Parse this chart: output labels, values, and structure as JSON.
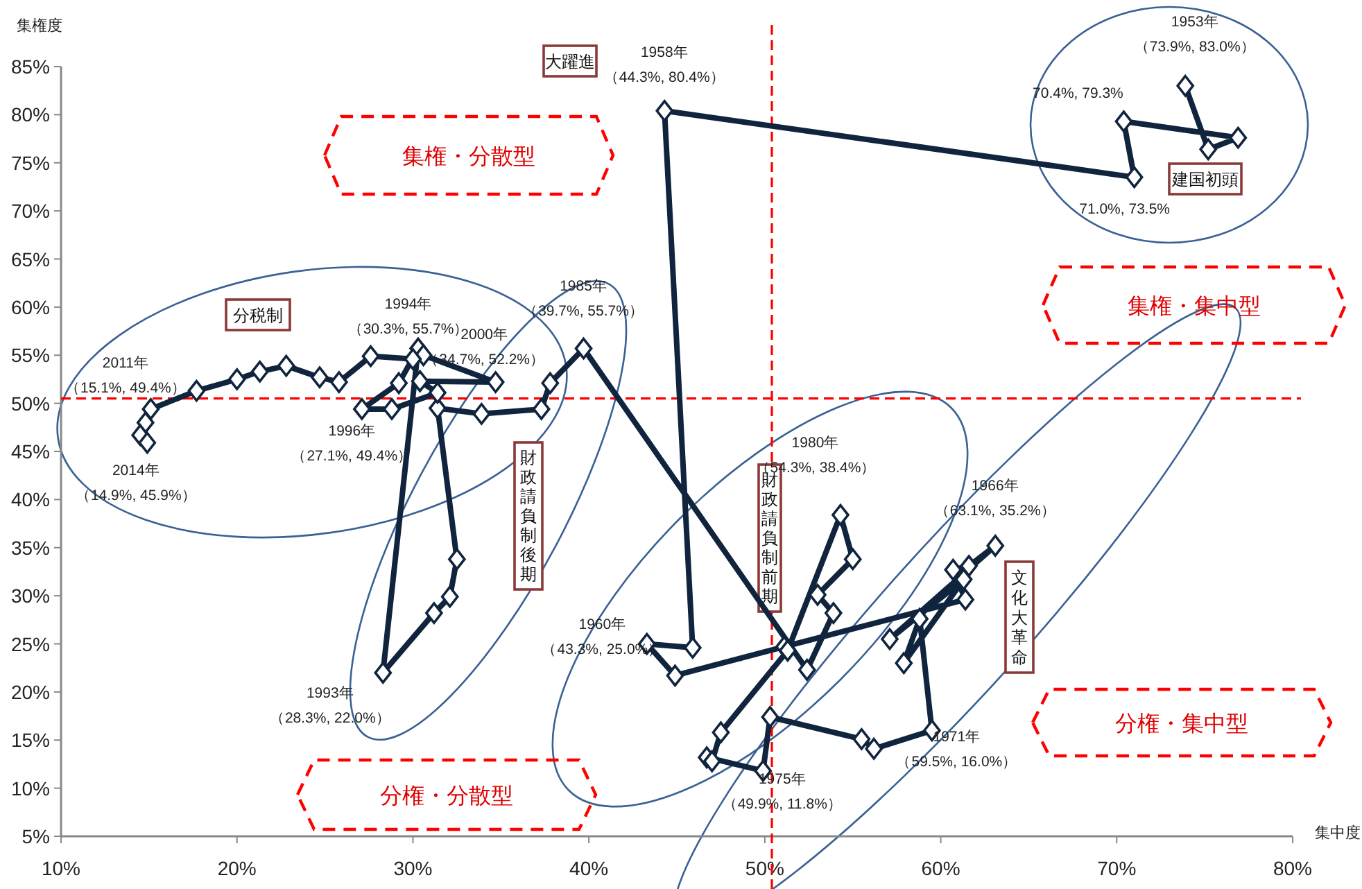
{
  "chart_data": {
    "type": "line",
    "xlabel": "集中度",
    "ylabel": "集権度",
    "marker": "diamond",
    "xlim": [
      10,
      80
    ],
    "ylim": [
      5,
      85
    ],
    "xticks": [
      {
        "value": 10,
        "label": "10%"
      },
      {
        "value": 20,
        "label": "20%"
      },
      {
        "value": 30,
        "label": "30%"
      },
      {
        "value": 40,
        "label": "40%"
      },
      {
        "value": 50,
        "label": "50%"
      },
      {
        "value": 60,
        "label": "60%"
      },
      {
        "value": 70,
        "label": "70%"
      },
      {
        "value": 80,
        "label": "80%"
      }
    ],
    "yticks": [
      {
        "value": 5,
        "label": "5%"
      },
      {
        "value": 10,
        "label": "10%"
      },
      {
        "value": 15,
        "label": "15%"
      },
      {
        "value": 20,
        "label": "20%"
      },
      {
        "value": 25,
        "label": "25%"
      },
      {
        "value": 30,
        "label": "30%"
      },
      {
        "value": 35,
        "label": "35%"
      },
      {
        "value": 40,
        "label": "40%"
      },
      {
        "value": 45,
        "label": "45%"
      },
      {
        "value": 50,
        "label": "50%"
      },
      {
        "value": 55,
        "label": "55%"
      },
      {
        "value": 60,
        "label": "60%"
      },
      {
        "value": 65,
        "label": "65%"
      },
      {
        "value": 70,
        "label": "70%"
      },
      {
        "value": 75,
        "label": "75%"
      },
      {
        "value": 80,
        "label": "80%"
      },
      {
        "value": 85,
        "label": "85%"
      }
    ],
    "x": [
      73.9,
      75.2,
      76.9,
      70.4,
      71.0,
      44.3,
      45.9,
      43.3,
      44.9,
      51.1,
      61.4,
      60.7,
      61.6,
      63.1,
      57.1,
      61.3,
      57.9,
      58.8,
      59.5,
      56.2,
      55.5,
      50.3,
      49.9,
      46.7,
      47.0,
      47.5,
      51.3,
      54.3,
      55.0,
      53.0,
      53.9,
      52.4,
      39.7,
      37.8,
      37.3,
      33.9,
      31.4,
      32.5,
      32.1,
      31.2,
      28.3,
      30.3,
      29.2,
      27.1,
      28.8,
      31.4,
      30.4,
      34.7,
      30.6,
      30.0,
      27.6,
      25.8,
      24.7,
      22.8,
      21.3,
      20.0,
      17.7,
      15.1,
      14.8,
      14.5,
      14.9
    ],
    "series": [
      {
        "color": "#10243e",
        "values": [
          83.0,
          76.4,
          77.6,
          79.3,
          73.5,
          80.4,
          24.6,
          25.0,
          21.7,
          24.7,
          29.6,
          32.7,
          33.1,
          35.2,
          25.5,
          31.7,
          23.0,
          27.6,
          16.0,
          14.1,
          15.1,
          17.4,
          11.8,
          13.2,
          12.8,
          15.8,
          24.3,
          38.4,
          33.8,
          30.1,
          28.2,
          22.3,
          55.7,
          52.1,
          49.4,
          48.9,
          49.5,
          33.8,
          29.9,
          28.2,
          22.0,
          55.7,
          52.1,
          49.4,
          49.4,
          51.1,
          52.3,
          52.2,
          55.0,
          54.6,
          54.9,
          52.2,
          52.7,
          53.9,
          53.3,
          52.5,
          51.3,
          49.4,
          48.0,
          46.7,
          45.9
        ]
      }
    ],
    "ref_lines": [
      {
        "axis": "x",
        "value": 50.4,
        "color": "#ff0000",
        "line_style": "dashed"
      },
      {
        "axis": "y",
        "value": 50.5,
        "color": "#ff0000",
        "line_style": "dashed"
      }
    ],
    "annotations": [
      {
        "text": "1953年（73.9%, 83.0%）",
        "x": 73.9,
        "y": 83.0
      },
      {
        "text": "1958年（44.3%, 80.4%）",
        "x": 44.3,
        "y": 80.4
      },
      {
        "text": "70.4%, 79.3%",
        "x": 70.4,
        "y": 79.3
      },
      {
        "text": "71.0%, 73.5%",
        "x": 71.0,
        "y": 73.5
      },
      {
        "text": "1960年（43.3%, 25.0%）",
        "x": 43.3,
        "y": 25.0
      },
      {
        "text": "1966年（63.1%, 35.2%）",
        "x": 63.1,
        "y": 35.2
      },
      {
        "text": "1971年（59.5%, 16.0%）",
        "x": 59.5,
        "y": 16.0
      },
      {
        "text": "1975年（49.9%, 11.8%）",
        "x": 49.9,
        "y": 11.8
      },
      {
        "text": "1980年（54.3%, 38.4%）",
        "x": 54.3,
        "y": 38.4
      },
      {
        "text": "1985年（39.7%, 55.7%）",
        "x": 39.7,
        "y": 55.7
      },
      {
        "text": "2000年（34.7%, 52.2%）",
        "x": 34.7,
        "y": 52.2
      },
      {
        "text": "1994年（30.3%, 55.7%）",
        "x": 30.3,
        "y": 55.7
      },
      {
        "text": "1996年（27.1%, 49.4%）",
        "x": 27.1,
        "y": 49.4
      },
      {
        "text": "1993年（28.3%, 22.0%）",
        "x": 28.3,
        "y": 22.0
      },
      {
        "text": "2011年（15.1%, 49.4%）",
        "x": 15.1,
        "y": 49.4
      },
      {
        "text": "2014年（14.9%, 45.9%）",
        "x": 14.9,
        "y": 45.9
      },
      "大躍進",
      "分税制",
      "建国初頭",
      "財政請負制後期",
      "財政請負制前期",
      "文化大革命",
      "集権・分散型",
      "集権・集中型",
      "分権・集中型",
      "分権・分散型"
    ]
  }
}
